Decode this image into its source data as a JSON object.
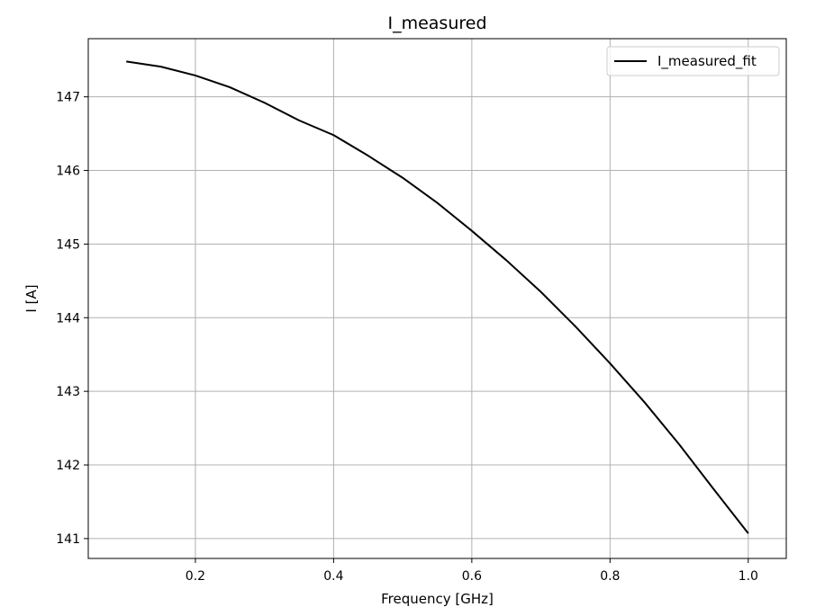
{
  "chart_data": {
    "type": "line",
    "title": "I_measured",
    "xlabel": "Frequency [GHz]",
    "ylabel": "I [A]",
    "xlim": [
      0.045,
      1.055
    ],
    "ylim": [
      140.73,
      147.79
    ],
    "xticks": [
      0.2,
      0.4,
      0.6,
      0.8,
      1.0
    ],
    "xtick_labels": [
      "0.2",
      "0.4",
      "0.6",
      "0.8",
      "1.0"
    ],
    "yticks": [
      141,
      142,
      143,
      144,
      145,
      146,
      147
    ],
    "ytick_labels": [
      "141",
      "142",
      "143",
      "144",
      "145",
      "146",
      "147"
    ],
    "grid": true,
    "legend_position": "top-right",
    "series": [
      {
        "name": "I_measured_fit",
        "color": "#000000",
        "x": [
          0.1,
          0.15,
          0.2,
          0.25,
          0.3,
          0.35,
          0.4,
          0.45,
          0.5,
          0.55,
          0.6,
          0.65,
          0.7,
          0.75,
          0.8,
          0.85,
          0.9,
          0.95,
          1.0
        ],
        "y": [
          147.48,
          147.41,
          147.29,
          147.13,
          146.92,
          146.68,
          146.48,
          146.2,
          145.9,
          145.56,
          145.18,
          144.78,
          144.35,
          143.88,
          143.38,
          142.85,
          142.28,
          141.67,
          141.07
        ]
      }
    ]
  }
}
